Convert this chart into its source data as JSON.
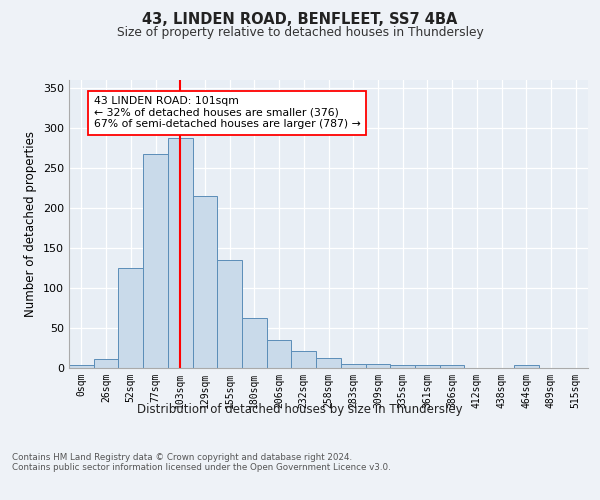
{
  "title1": "43, LINDEN ROAD, BENFLEET, SS7 4BA",
  "title2": "Size of property relative to detached houses in Thundersley",
  "xlabel": "Distribution of detached houses by size in Thundersley",
  "ylabel": "Number of detached properties",
  "bin_labels": [
    "0sqm",
    "26sqm",
    "52sqm",
    "77sqm",
    "103sqm",
    "129sqm",
    "155sqm",
    "180sqm",
    "206sqm",
    "232sqm",
    "258sqm",
    "283sqm",
    "309sqm",
    "335sqm",
    "361sqm",
    "386sqm",
    "412sqm",
    "438sqm",
    "464sqm",
    "489sqm",
    "515sqm"
  ],
  "bar_heights": [
    3,
    11,
    125,
    267,
    288,
    215,
    135,
    62,
    35,
    21,
    12,
    4,
    5,
    3,
    3,
    3,
    0,
    0,
    3,
    0,
    0
  ],
  "bar_color": "#c9daea",
  "bar_edge_color": "#5b8db8",
  "vline_x": 4,
  "vline_color": "red",
  "annotation_text": "43 LINDEN ROAD: 101sqm\n← 32% of detached houses are smaller (376)\n67% of semi-detached houses are larger (787) →",
  "annotation_box_color": "white",
  "annotation_box_edge": "red",
  "ylim": [
    0,
    360
  ],
  "yticks": [
    0,
    50,
    100,
    150,
    200,
    250,
    300,
    350
  ],
  "footer_text": "Contains HM Land Registry data © Crown copyright and database right 2024.\nContains public sector information licensed under the Open Government Licence v3.0.",
  "bg_color": "#eef2f7",
  "plot_bg_color": "#e8eef5"
}
